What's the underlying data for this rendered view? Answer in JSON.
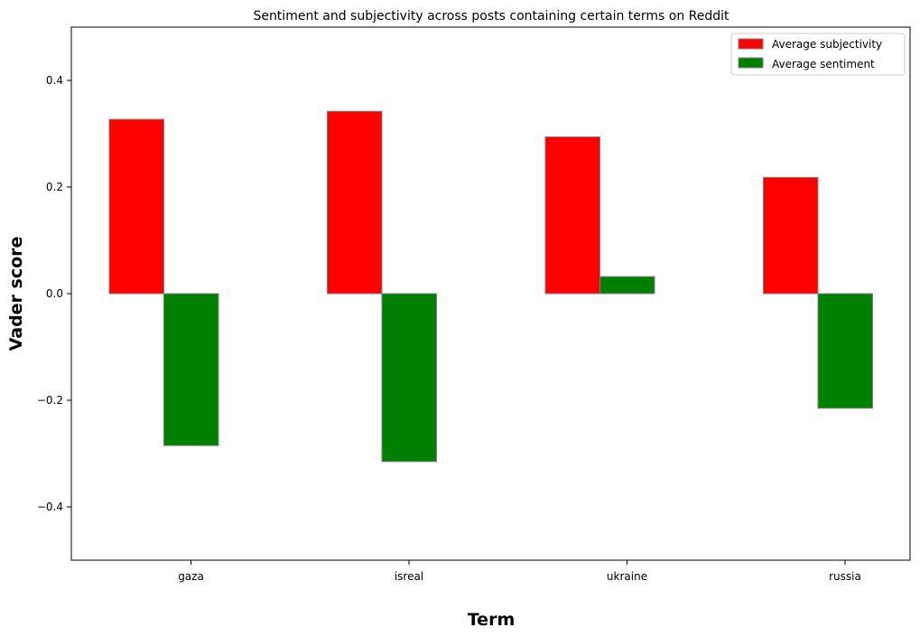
{
  "chart_data": {
    "type": "bar",
    "title": "Sentiment and subjectivity across posts containing certain terms on Reddit",
    "xlabel": "Term",
    "ylabel": "Vader score",
    "categories": [
      "gaza",
      "isreal",
      "ukraine",
      "russia"
    ],
    "series": [
      {
        "name": "Average subjectivity",
        "color": "#ff0000",
        "values": [
          0.327,
          0.342,
          0.294,
          0.218
        ]
      },
      {
        "name": "Average sentiment",
        "color": "#008000",
        "values": [
          -0.285,
          -0.315,
          0.032,
          -0.215
        ]
      }
    ],
    "ylim": [
      -0.5,
      0.5
    ],
    "yticks": [
      -0.4,
      -0.2,
      0.0,
      0.2,
      0.4
    ],
    "ytick_labels": [
      "−0.4",
      "−0.2",
      "0.0",
      "0.2",
      "0.4"
    ],
    "legend_position": "top-right",
    "grid": false,
    "bar_edge_color": "#808080"
  }
}
